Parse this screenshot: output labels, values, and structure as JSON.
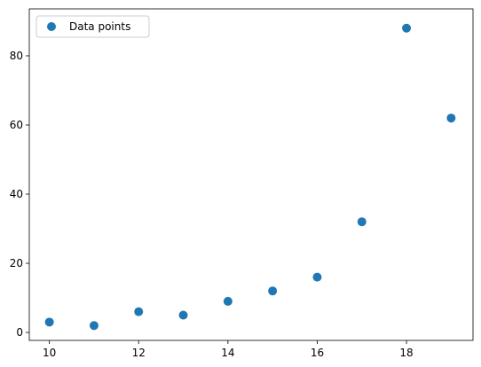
{
  "chart_data": {
    "type": "scatter",
    "series": [
      {
        "name": "Data points",
        "color": "#1f77b4",
        "x": [
          10,
          11,
          12,
          13,
          14,
          15,
          16,
          17,
          18,
          19
        ],
        "values": [
          3,
          2,
          6,
          5,
          9,
          12,
          16,
          32,
          88,
          62
        ]
      }
    ],
    "xlim": [
      9.55,
      19.45
    ],
    "ylim": [
      -2.3,
      92.3
    ],
    "xticks": [
      10,
      12,
      14,
      16,
      18
    ],
    "yticks": [
      0,
      20,
      40,
      60,
      80
    ],
    "legend": "upper-left"
  }
}
